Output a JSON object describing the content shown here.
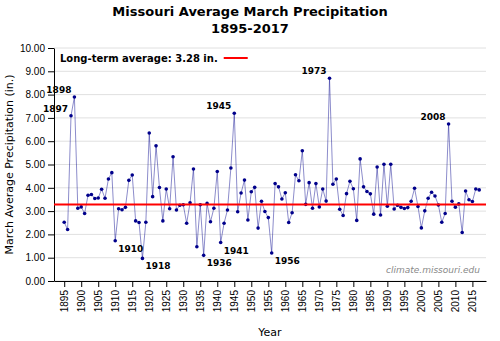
{
  "chart_data": {
    "type": "line",
    "title": "Missouri Average March Precipitation",
    "subtitle": "1895-2017",
    "x_label": "Year",
    "y_label": "March Average Precipitation (in.)",
    "x": [
      1895,
      1896,
      1897,
      1898,
      1899,
      1900,
      1901,
      1902,
      1903,
      1904,
      1905,
      1906,
      1907,
      1908,
      1909,
      1910,
      1911,
      1912,
      1913,
      1914,
      1915,
      1916,
      1917,
      1918,
      1919,
      1920,
      1921,
      1922,
      1923,
      1924,
      1925,
      1926,
      1927,
      1928,
      1929,
      1930,
      1931,
      1932,
      1933,
      1934,
      1935,
      1936,
      1937,
      1938,
      1939,
      1940,
      1941,
      1942,
      1943,
      1944,
      1945,
      1946,
      1947,
      1948,
      1949,
      1950,
      1951,
      1952,
      1953,
      1954,
      1955,
      1956,
      1957,
      1958,
      1959,
      1960,
      1961,
      1962,
      1963,
      1964,
      1965,
      1966,
      1967,
      1968,
      1969,
      1970,
      1971,
      1972,
      1973,
      1974,
      1975,
      1976,
      1977,
      1978,
      1979,
      1980,
      1981,
      1982,
      1983,
      1984,
      1985,
      1986,
      1987,
      1988,
      1989,
      1990,
      1991,
      1992,
      1993,
      1994,
      1995,
      1996,
      1997,
      1998,
      1999,
      2000,
      2001,
      2002,
      2003,
      2004,
      2005,
      2006,
      2007,
      2008,
      2009,
      2010,
      2011,
      2012,
      2013,
      2014,
      2015,
      2016,
      2017
    ],
    "values": [
      2.52,
      2.21,
      7.09,
      7.9,
      3.12,
      3.18,
      2.9,
      3.68,
      3.71,
      3.54,
      3.56,
      3.94,
      3.55,
      4.38,
      4.65,
      1.73,
      3.1,
      3.06,
      3.16,
      4.32,
      4.55,
      2.58,
      2.51,
      0.97,
      2.52,
      6.35,
      3.62,
      5.8,
      4.01,
      2.58,
      3.95,
      3.1,
      5.33,
      3.05,
      3.25,
      3.27,
      2.48,
      3.36,
      4.81,
      1.47,
      3.27,
      1.1,
      3.33,
      2.54,
      3.12,
      4.7,
      1.65,
      2.48,
      3.05,
      4.85,
      7.2,
      2.97,
      3.78,
      4.33,
      2.62,
      3.83,
      4.02,
      2.27,
      3.42,
      2.98,
      2.72,
      1.2,
      4.18,
      4.04,
      3.52,
      3.79,
      2.51,
      2.93,
      4.56,
      4.3,
      5.59,
      3.29,
      4.22,
      3.12,
      4.18,
      3.18,
      3.95,
      3.43,
      8.7,
      4.15,
      4.38,
      3.08,
      2.81,
      3.75,
      4.28,
      3.96,
      2.6,
      5.24,
      4.04,
      3.84,
      3.74,
      2.87,
      4.89,
      2.83,
      5.01,
      3.21,
      5.01,
      3.09,
      3.25,
      3.16,
      3.11,
      3.15,
      3.42,
      3.98,
      3.2,
      2.28,
      3.01,
      3.55,
      3.81,
      3.65,
      3.26,
      2.52,
      2.9,
      6.74,
      3.42,
      3.17,
      3.31,
      2.08,
      3.86,
      3.49,
      3.41,
      3.95,
      3.91
    ],
    "color": "#00008B",
    "marker": "circle",
    "xlim": [
      1892,
      2019
    ],
    "xticks": [
      1895,
      1900,
      1905,
      1910,
      1915,
      1920,
      1925,
      1930,
      1935,
      1940,
      1945,
      1950,
      1955,
      1960,
      1965,
      1970,
      1975,
      1980,
      1985,
      1990,
      1995,
      2000,
      2005,
      2010,
      2015
    ],
    "ylim": [
      0.0,
      10.0
    ],
    "yticks": [
      {
        "value": 0.0,
        "label": "0.00"
      },
      {
        "value": 1.0,
        "label": "1.00"
      },
      {
        "value": 2.0,
        "label": "2.00"
      },
      {
        "value": 3.0,
        "label": "3.00"
      },
      {
        "value": 4.0,
        "label": "4.00"
      },
      {
        "value": 5.0,
        "label": "5.00"
      },
      {
        "value": 6.0,
        "label": "6.00"
      },
      {
        "value": 7.0,
        "label": "7.00"
      },
      {
        "value": 8.0,
        "label": "8.00"
      },
      {
        "value": 9.0,
        "label": "9.00"
      },
      {
        "value": 10.0,
        "label": "10.00"
      }
    ],
    "grid": true,
    "average_line": {
      "value": 3.28,
      "label": "Long-term average: 3.28 in.",
      "color": "#FF0000"
    },
    "annotations": [
      {
        "x": 1897,
        "text": "1897"
      },
      {
        "x": 1898,
        "text": "1898"
      },
      {
        "x": 1910,
        "text": "1910"
      },
      {
        "x": 1918,
        "text": "1918"
      },
      {
        "x": 1936,
        "text": "1936"
      },
      {
        "x": 1941,
        "text": "1941"
      },
      {
        "x": 1945,
        "text": "1945"
      },
      {
        "x": 1956,
        "text": "1956"
      },
      {
        "x": 1973,
        "text": "1973"
      },
      {
        "x": 2008,
        "text": "2008"
      }
    ],
    "watermark": "climate.missouri.edu"
  }
}
